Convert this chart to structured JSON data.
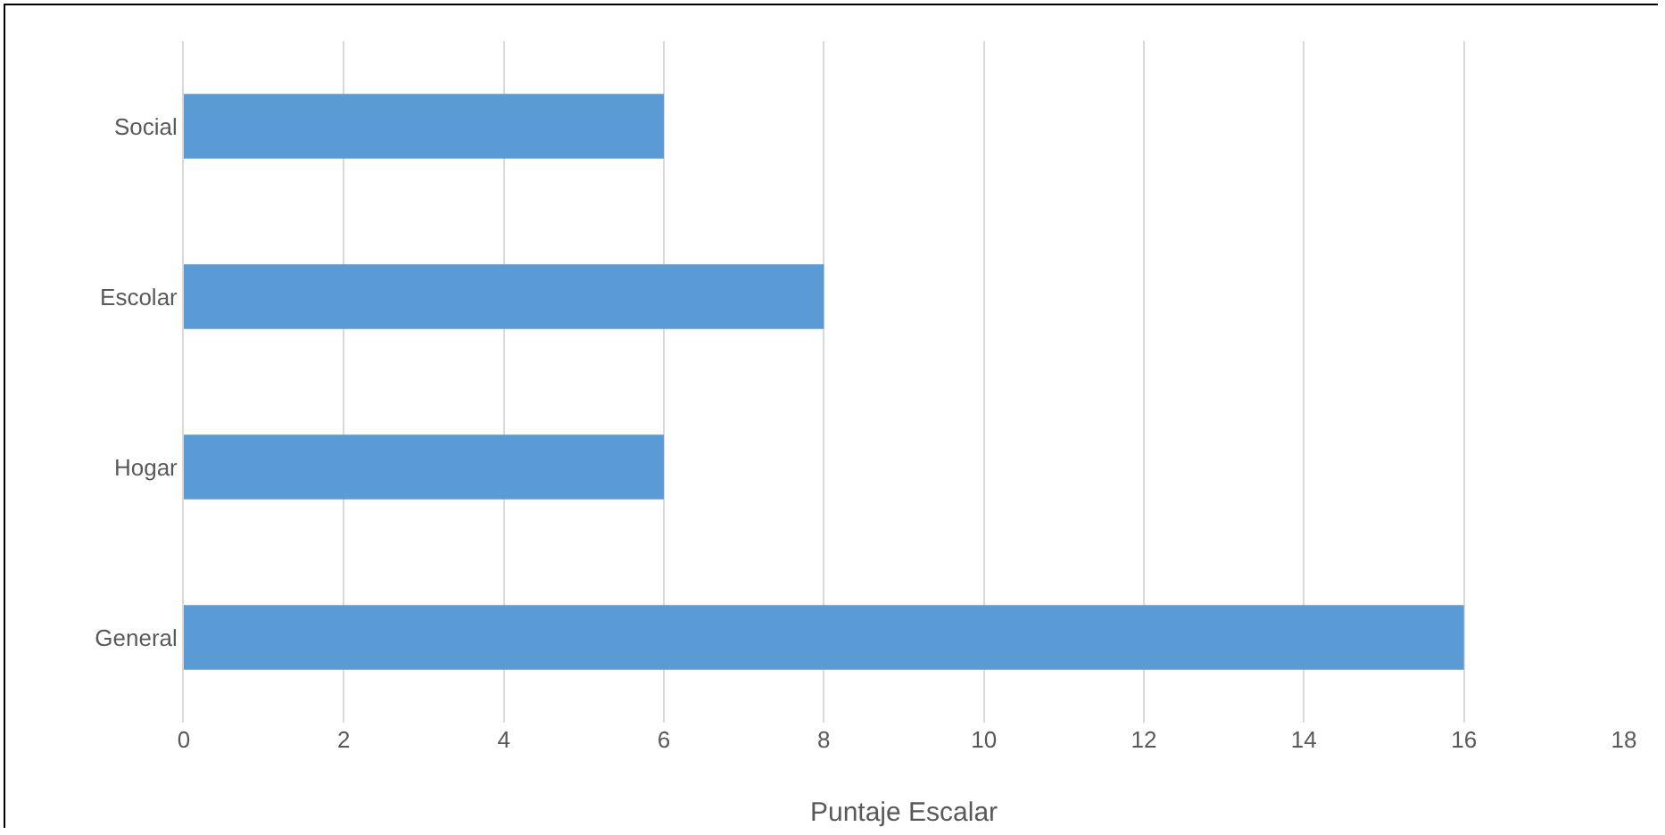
{
  "chart_data": {
    "type": "bar",
    "orientation": "horizontal",
    "xlabel": "Puntaje Escalar",
    "categories": [
      "Social",
      "Escolar",
      "Hogar",
      "General"
    ],
    "values": [
      6,
      8,
      6,
      16
    ],
    "color": "#5b9bd5",
    "xlim": [
      0,
      18
    ],
    "xticks": [
      0,
      2,
      4,
      6,
      8,
      10,
      12,
      14,
      16,
      18
    ],
    "grid": "x"
  }
}
